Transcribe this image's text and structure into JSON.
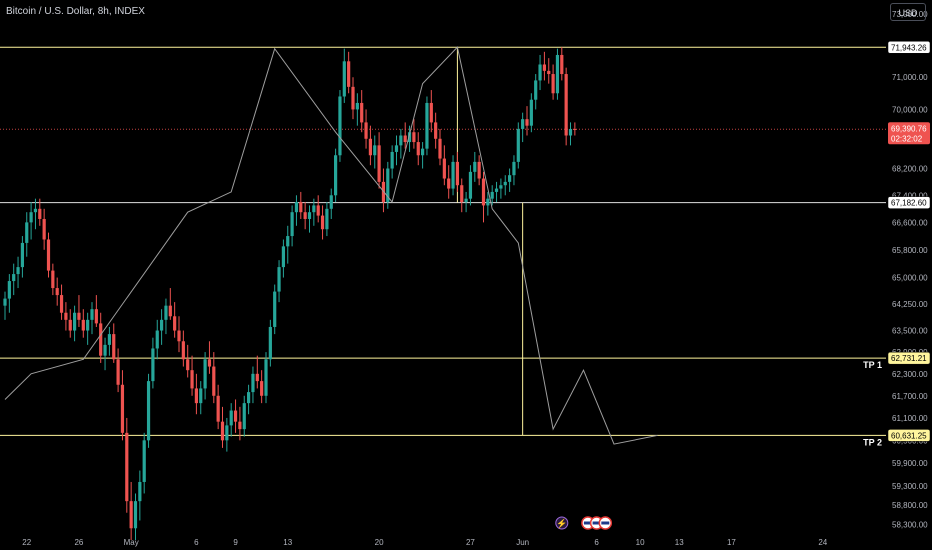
{
  "title": "Bitcoin / U.S. Dollar, 8h, INDEX",
  "currency_button": "USD",
  "colors": {
    "up": "#26a69a",
    "down": "#ef5350",
    "level": "#fff59d",
    "white_level": "#e0e0e0",
    "current": "#ef5350"
  },
  "chart_data": {
    "type": "candlestick",
    "y_scale": "log",
    "ylim": [
      57900,
      73200
    ],
    "y_ticks": [
      73000,
      72600,
      71000,
      70000,
      69000,
      68200,
      67400,
      66600,
      65800,
      65000,
      64250,
      63500,
      62900,
      62300,
      61700,
      61100,
      60500,
      59900,
      59300,
      58800,
      58300
    ],
    "y_tick_labels": [
      "73,000.00",
      "",
      "71,000.00",
      "70,000.00",
      "",
      "68,200.00",
      "67,400.00",
      "66,600.00",
      "65,800.00",
      "65,000.00",
      "64,250.00",
      "63,500.00",
      "62,900.00",
      "62,300.00",
      "61,700.00",
      "61,100.00",
      "60,500.00",
      "59,900.00",
      "59,300.00",
      "58,800.00",
      "58,300.00"
    ],
    "x_tick_labels": [
      "22",
      "26",
      "May",
      "6",
      "9",
      "13",
      "20",
      "27",
      "Jun",
      "6",
      "10",
      "13",
      "17",
      "24"
    ],
    "x_tick_bars": [
      5,
      17,
      29,
      44,
      53,
      65,
      86,
      107,
      119,
      136,
      146,
      155,
      167,
      188
    ],
    "current_price": "69,390.76",
    "countdown": "02:32:02",
    "horizontal_levels": [
      {
        "price": 71943.26,
        "label": "71,943.26",
        "style": "yellow"
      },
      {
        "price": 67182.6,
        "label": "67,182.60",
        "style": "white"
      },
      {
        "price": 62731.21,
        "label": "62,731.21",
        "style": "yellow",
        "tag": "TP 1"
      },
      {
        "price": 60631.25,
        "label": "60,631.25",
        "style": "yellow",
        "tag": "TP 2"
      }
    ],
    "candles": [
      {
        "o": 64200,
        "h": 64600,
        "l": 63800,
        "c": 64400
      },
      {
        "o": 64400,
        "h": 65100,
        "l": 64000,
        "c": 64900
      },
      {
        "o": 64900,
        "h": 65400,
        "l": 64500,
        "c": 65100
      },
      {
        "o": 65100,
        "h": 65600,
        "l": 64700,
        "c": 65300
      },
      {
        "o": 65300,
        "h": 66200,
        "l": 65000,
        "c": 66000
      },
      {
        "o": 66000,
        "h": 66900,
        "l": 65600,
        "c": 66600
      },
      {
        "o": 66600,
        "h": 67200,
        "l": 66100,
        "c": 66900
      },
      {
        "o": 66900,
        "h": 67300,
        "l": 66400,
        "c": 67000
      },
      {
        "o": 67000,
        "h": 67300,
        "l": 66500,
        "c": 66700
      },
      {
        "o": 66700,
        "h": 67000,
        "l": 65800,
        "c": 66100
      },
      {
        "o": 66100,
        "h": 66300,
        "l": 65000,
        "c": 65200
      },
      {
        "o": 65200,
        "h": 65400,
        "l": 64500,
        "c": 64700
      },
      {
        "o": 64700,
        "h": 65000,
        "l": 64200,
        "c": 64500
      },
      {
        "o": 64500,
        "h": 64800,
        "l": 63800,
        "c": 64000
      },
      {
        "o": 64000,
        "h": 64300,
        "l": 63500,
        "c": 63800
      },
      {
        "o": 63800,
        "h": 64100,
        "l": 63300,
        "c": 63500
      },
      {
        "o": 63500,
        "h": 64200,
        "l": 63200,
        "c": 64000
      },
      {
        "o": 64000,
        "h": 64500,
        "l": 63600,
        "c": 63800
      },
      {
        "o": 63800,
        "h": 64100,
        "l": 63300,
        "c": 63500
      },
      {
        "o": 63500,
        "h": 64000,
        "l": 63100,
        "c": 63800
      },
      {
        "o": 63800,
        "h": 64300,
        "l": 63400,
        "c": 64100
      },
      {
        "o": 64100,
        "h": 64500,
        "l": 63600,
        "c": 63700
      },
      {
        "o": 63700,
        "h": 64000,
        "l": 62600,
        "c": 62800
      },
      {
        "o": 62800,
        "h": 63300,
        "l": 62400,
        "c": 63100
      },
      {
        "o": 63100,
        "h": 63600,
        "l": 62800,
        "c": 63400
      },
      {
        "o": 63400,
        "h": 63700,
        "l": 62600,
        "c": 62700
      },
      {
        "o": 62700,
        "h": 63000,
        "l": 61800,
        "c": 62000
      },
      {
        "o": 62000,
        "h": 62400,
        "l": 60500,
        "c": 60700
      },
      {
        "o": 60700,
        "h": 61100,
        "l": 58600,
        "c": 58900
      },
      {
        "o": 58900,
        "h": 59400,
        "l": 57900,
        "c": 58200
      },
      {
        "o": 58200,
        "h": 59100,
        "l": 57900,
        "c": 58900
      },
      {
        "o": 58900,
        "h": 59700,
        "l": 58400,
        "c": 59400
      },
      {
        "o": 59400,
        "h": 60700,
        "l": 59100,
        "c": 60500
      },
      {
        "o": 60500,
        "h": 62300,
        "l": 60300,
        "c": 62100
      },
      {
        "o": 62100,
        "h": 63300,
        "l": 61900,
        "c": 63000
      },
      {
        "o": 63000,
        "h": 63800,
        "l": 62700,
        "c": 63500
      },
      {
        "o": 63500,
        "h": 64100,
        "l": 63100,
        "c": 63800
      },
      {
        "o": 63800,
        "h": 64400,
        "l": 63400,
        "c": 64200
      },
      {
        "o": 64200,
        "h": 64700,
        "l": 63800,
        "c": 63900
      },
      {
        "o": 63900,
        "h": 64300,
        "l": 63300,
        "c": 63500
      },
      {
        "o": 63500,
        "h": 63900,
        "l": 62900,
        "c": 63200
      },
      {
        "o": 63200,
        "h": 63500,
        "l": 62500,
        "c": 62700
      },
      {
        "o": 62700,
        "h": 63100,
        "l": 62200,
        "c": 62400
      },
      {
        "o": 62400,
        "h": 62800,
        "l": 61700,
        "c": 61900
      },
      {
        "o": 61900,
        "h": 62300,
        "l": 61200,
        "c": 61500
      },
      {
        "o": 61500,
        "h": 62100,
        "l": 61200,
        "c": 61900
      },
      {
        "o": 61900,
        "h": 62900,
        "l": 61600,
        "c": 62700
      },
      {
        "o": 62700,
        "h": 63200,
        "l": 62300,
        "c": 62500
      },
      {
        "o": 62500,
        "h": 62900,
        "l": 61500,
        "c": 61700
      },
      {
        "o": 61700,
        "h": 62000,
        "l": 60800,
        "c": 61000
      },
      {
        "o": 61000,
        "h": 61400,
        "l": 60300,
        "c": 60500
      },
      {
        "o": 60500,
        "h": 61100,
        "l": 60200,
        "c": 60900
      },
      {
        "o": 60900,
        "h": 61500,
        "l": 60600,
        "c": 61300
      },
      {
        "o": 61300,
        "h": 61600,
        "l": 60700,
        "c": 61000
      },
      {
        "o": 61000,
        "h": 61400,
        "l": 60500,
        "c": 60800
      },
      {
        "o": 60800,
        "h": 61700,
        "l": 60600,
        "c": 61500
      },
      {
        "o": 61500,
        "h": 62000,
        "l": 61200,
        "c": 61800
      },
      {
        "o": 61800,
        "h": 62500,
        "l": 61500,
        "c": 62300
      },
      {
        "o": 62300,
        "h": 62800,
        "l": 61900,
        "c": 62100
      },
      {
        "o": 62100,
        "h": 62400,
        "l": 61500,
        "c": 61700
      },
      {
        "o": 61700,
        "h": 62900,
        "l": 61500,
        "c": 62700
      },
      {
        "o": 62700,
        "h": 63800,
        "l": 62500,
        "c": 63600
      },
      {
        "o": 63600,
        "h": 64800,
        "l": 63400,
        "c": 64600
      },
      {
        "o": 64600,
        "h": 65500,
        "l": 64300,
        "c": 65300
      },
      {
        "o": 65300,
        "h": 66100,
        "l": 65000,
        "c": 65900
      },
      {
        "o": 65900,
        "h": 66500,
        "l": 65400,
        "c": 66200
      },
      {
        "o": 66200,
        "h": 67100,
        "l": 65900,
        "c": 66900
      },
      {
        "o": 66900,
        "h": 67400,
        "l": 66500,
        "c": 67200
      },
      {
        "o": 67200,
        "h": 67500,
        "l": 66700,
        "c": 66900
      },
      {
        "o": 66900,
        "h": 67200,
        "l": 66400,
        "c": 66700
      },
      {
        "o": 66700,
        "h": 67100,
        "l": 66300,
        "c": 66900
      },
      {
        "o": 66900,
        "h": 67300,
        "l": 66500,
        "c": 67100
      },
      {
        "o": 67100,
        "h": 67400,
        "l": 66600,
        "c": 66800
      },
      {
        "o": 66800,
        "h": 67100,
        "l": 66100,
        "c": 66400
      },
      {
        "o": 66400,
        "h": 67200,
        "l": 66200,
        "c": 67000
      },
      {
        "o": 67000,
        "h": 67600,
        "l": 66700,
        "c": 67400
      },
      {
        "o": 67400,
        "h": 68800,
        "l": 67200,
        "c": 68600
      },
      {
        "o": 68600,
        "h": 70600,
        "l": 68400,
        "c": 70400
      },
      {
        "o": 70400,
        "h": 71900,
        "l": 70200,
        "c": 71500
      },
      {
        "o": 71500,
        "h": 71800,
        "l": 70500,
        "c": 70700
      },
      {
        "o": 70700,
        "h": 71000,
        "l": 69700,
        "c": 70000
      },
      {
        "o": 70000,
        "h": 70500,
        "l": 69500,
        "c": 70200
      },
      {
        "o": 70200,
        "h": 70600,
        "l": 69300,
        "c": 69600
      },
      {
        "o": 69600,
        "h": 70000,
        "l": 68800,
        "c": 69100
      },
      {
        "o": 69100,
        "h": 69500,
        "l": 68300,
        "c": 68600
      },
      {
        "o": 68600,
        "h": 69200,
        "l": 68200,
        "c": 68900
      },
      {
        "o": 68900,
        "h": 69300,
        "l": 67600,
        "c": 67800
      },
      {
        "o": 67800,
        "h": 68200,
        "l": 66900,
        "c": 67200
      },
      {
        "o": 67200,
        "h": 68400,
        "l": 67000,
        "c": 68200
      },
      {
        "o": 68200,
        "h": 68900,
        "l": 67900,
        "c": 68700
      },
      {
        "o": 68700,
        "h": 69200,
        "l": 68300,
        "c": 68900
      },
      {
        "o": 68900,
        "h": 69400,
        "l": 68500,
        "c": 69200
      },
      {
        "o": 69200,
        "h": 69600,
        "l": 68800,
        "c": 69000
      },
      {
        "o": 69000,
        "h": 69500,
        "l": 68700,
        "c": 69300
      },
      {
        "o": 69300,
        "h": 69700,
        "l": 68800,
        "c": 69000
      },
      {
        "o": 69000,
        "h": 69300,
        "l": 68300,
        "c": 68600
      },
      {
        "o": 68600,
        "h": 69000,
        "l": 68200,
        "c": 68800
      },
      {
        "o": 68800,
        "h": 70400,
        "l": 68600,
        "c": 70200
      },
      {
        "o": 70200,
        "h": 70600,
        "l": 69300,
        "c": 69600
      },
      {
        "o": 69600,
        "h": 69900,
        "l": 68800,
        "c": 69100
      },
      {
        "o": 69100,
        "h": 69400,
        "l": 68300,
        "c": 68500
      },
      {
        "o": 68500,
        "h": 68900,
        "l": 67700,
        "c": 67900
      },
      {
        "o": 67900,
        "h": 68300,
        "l": 67300,
        "c": 67600
      },
      {
        "o": 67600,
        "h": 68600,
        "l": 67400,
        "c": 68400
      },
      {
        "o": 68400,
        "h": 68700,
        "l": 67500,
        "c": 67700
      },
      {
        "o": 67700,
        "h": 67900,
        "l": 66900,
        "c": 67200
      },
      {
        "o": 67200,
        "h": 67500,
        "l": 66900,
        "c": 67300
      },
      {
        "o": 67300,
        "h": 68300,
        "l": 67100,
        "c": 68100
      },
      {
        "o": 68100,
        "h": 68700,
        "l": 67800,
        "c": 68400
      },
      {
        "o": 68400,
        "h": 68600,
        "l": 67700,
        "c": 67900
      },
      {
        "o": 67900,
        "h": 68100,
        "l": 66600,
        "c": 67100
      },
      {
        "o": 67100,
        "h": 67500,
        "l": 66800,
        "c": 67300
      },
      {
        "o": 67300,
        "h": 67700,
        "l": 67100,
        "c": 67500
      },
      {
        "o": 67500,
        "h": 67800,
        "l": 67200,
        "c": 67600
      },
      {
        "o": 67600,
        "h": 67900,
        "l": 67300,
        "c": 67700
      },
      {
        "o": 67700,
        "h": 68000,
        "l": 67400,
        "c": 67800
      },
      {
        "o": 67800,
        "h": 68200,
        "l": 67500,
        "c": 68000
      },
      {
        "o": 68000,
        "h": 68600,
        "l": 67700,
        "c": 68400
      },
      {
        "o": 68400,
        "h": 69600,
        "l": 68200,
        "c": 69400
      },
      {
        "o": 69400,
        "h": 69900,
        "l": 69000,
        "c": 69700
      },
      {
        "o": 69700,
        "h": 70100,
        "l": 69200,
        "c": 69500
      },
      {
        "o": 69500,
        "h": 70500,
        "l": 69300,
        "c": 70300
      },
      {
        "o": 70300,
        "h": 71100,
        "l": 70000,
        "c": 70900
      },
      {
        "o": 70900,
        "h": 71700,
        "l": 70600,
        "c": 71400
      },
      {
        "o": 71400,
        "h": 71800,
        "l": 70900,
        "c": 71200
      },
      {
        "o": 71200,
        "h": 71600,
        "l": 70800,
        "c": 71100
      },
      {
        "o": 71100,
        "h": 71400,
        "l": 70300,
        "c": 70500
      },
      {
        "o": 70500,
        "h": 71900,
        "l": 70300,
        "c": 71700
      },
      {
        "o": 71700,
        "h": 71950,
        "l": 70900,
        "c": 71100
      },
      {
        "o": 71100,
        "h": 71300,
        "l": 68900,
        "c": 69200
      },
      {
        "o": 69200,
        "h": 69600,
        "l": 68900,
        "c": 69400
      },
      {
        "o": 69400,
        "h": 69600,
        "l": 69200,
        "c": 69390
      }
    ],
    "pattern_path": [
      [
        0,
        61600
      ],
      [
        6,
        62300
      ],
      [
        18,
        62700
      ],
      [
        42,
        66900
      ],
      [
        52,
        67500
      ],
      [
        62,
        71900
      ],
      [
        76,
        69300
      ],
      [
        89,
        67200
      ],
      [
        96,
        70800
      ],
      [
        104,
        71950
      ],
      [
        112,
        67000
      ],
      [
        118,
        66000
      ],
      [
        126,
        60800
      ],
      [
        133,
        62400
      ],
      [
        140,
        60400
      ],
      [
        150,
        60631
      ]
    ],
    "vertical_marks": [
      {
        "bar": 104,
        "from": 71943.26,
        "to": 67182.6
      },
      {
        "bar": 119,
        "from": 67182.6,
        "to": 60631.25
      }
    ],
    "markers": [
      {
        "bar": 128,
        "kind": "lightning"
      },
      {
        "bar": 134,
        "kind": "flag"
      },
      {
        "bar": 136,
        "kind": "flag"
      },
      {
        "bar": 138,
        "kind": "flag"
      }
    ]
  }
}
